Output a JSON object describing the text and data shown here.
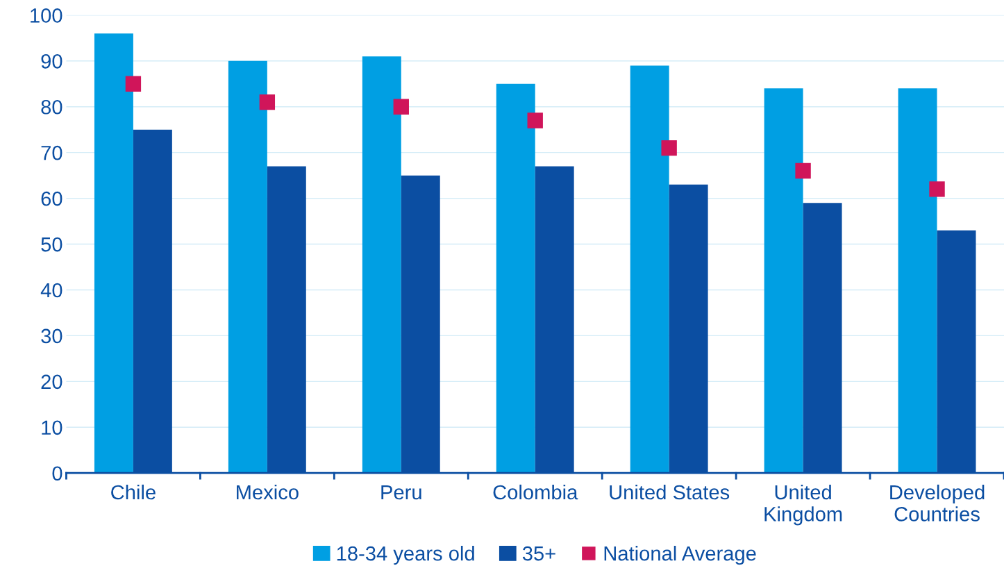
{
  "chart_data": {
    "type": "bar",
    "categories": [
      "Chile",
      "Mexico",
      "Peru",
      "Colombia",
      "United States",
      "United\nKingdom",
      "Developed\nCountries"
    ],
    "series": [
      {
        "name": "18-34 years old",
        "color": "#009fe3",
        "values": [
          96,
          90,
          91,
          85,
          89,
          84,
          84
        ]
      },
      {
        "name": "35+",
        "color": "#0b4ea2",
        "values": [
          75,
          67,
          65,
          67,
          63,
          59,
          53
        ]
      },
      {
        "name": "National Average",
        "color": "#d0155a",
        "type": "scatter",
        "marker": "square",
        "values": [
          85,
          81,
          80,
          77,
          71,
          66,
          62
        ]
      }
    ],
    "ylim": [
      0,
      100
    ],
    "yticks": [
      0,
      10,
      20,
      30,
      40,
      50,
      60,
      70,
      80,
      90,
      100
    ],
    "grid": "y",
    "legend": "bottom"
  }
}
